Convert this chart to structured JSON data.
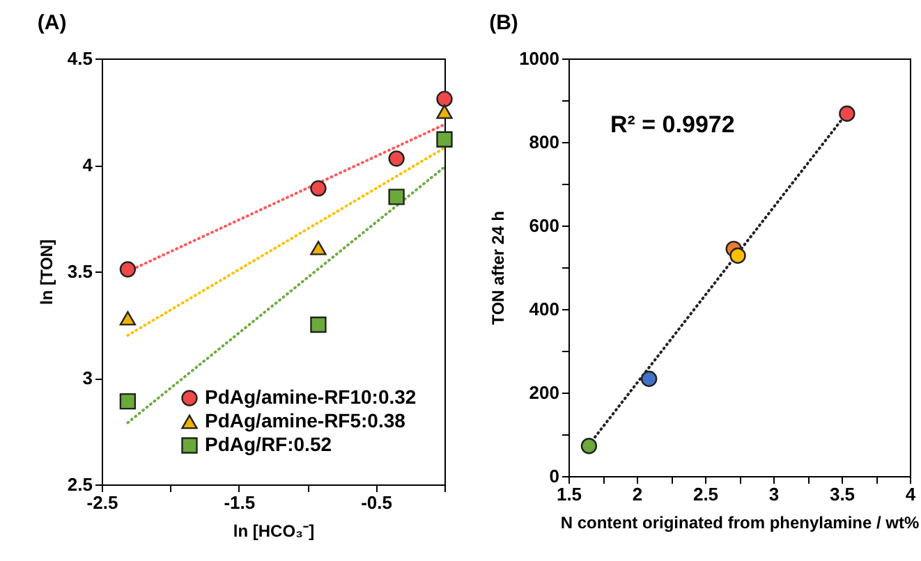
{
  "chart_data": [
    {
      "type": "scatter",
      "title": "(A)",
      "xlabel": "ln [HCO₃⁻]",
      "ylabel": "ln [TON]",
      "xlim": [
        -2.5,
        0
      ],
      "ylim": [
        2.5,
        4.5
      ],
      "xticks": [
        -2.5,
        {
          "value": -2,
          "label": null
        },
        -1.5,
        {
          "value": -1,
          "label": null
        },
        -0.5,
        {
          "value": 0,
          "label": null
        }
      ],
      "yticks": [
        2.5,
        3,
        3.5,
        4,
        4.5
      ],
      "grid": false,
      "legend": "bottom right",
      "series": [
        {
          "name": "PdAg/amine-RF10:0.32",
          "color": "#f04848",
          "marker": "circle",
          "x": [
            -2.31,
            -0.92,
            -0.35,
            0
          ],
          "values": [
            3.51,
            3.89,
            4.03,
            4.31
          ]
        },
        {
          "name": "PdAg/amine-RF5:0.38",
          "color": "#f0b000",
          "marker": "triangle",
          "x": [
            -2.31,
            -0.92,
            -0.35,
            0
          ],
          "values": [
            3.28,
            3.61,
            null,
            4.25
          ]
        },
        {
          "name": "PdAg/RF:0.52",
          "color": "#6aaa3a",
          "marker": "square",
          "x": [
            -2.31,
            -0.92,
            -0.35,
            0
          ],
          "values": [
            2.89,
            3.25,
            3.85,
            4.12
          ]
        },
        {
          "type": "line",
          "color": "#ff5a5a",
          "line_style": "dotted",
          "x": [
            -2.31,
            0
          ],
          "values": [
            3.5,
            4.19
          ]
        },
        {
          "type": "line",
          "color": "#ffc000",
          "line_style": "dotted",
          "x": [
            -2.31,
            0
          ],
          "values": [
            3.2,
            4.08
          ]
        },
        {
          "type": "line",
          "color": "#70ad47",
          "line_style": "dotted",
          "x": [
            -2.31,
            0
          ],
          "values": [
            2.79,
            3.99
          ]
        }
      ]
    },
    {
      "type": "scatter",
      "title": "(B)",
      "xlabel": "N content originated from phenylamine / wt%",
      "ylabel": "TON after 24 h",
      "xlim": [
        1.5,
        4
      ],
      "ylim": [
        0,
        1000
      ],
      "xticks": [
        1.5,
        {
          "value": 1.75,
          "label": null
        },
        2,
        {
          "value": 2.25,
          "label": null
        },
        2.5,
        {
          "value": 2.75,
          "label": null
        },
        3,
        {
          "value": 3.25,
          "label": null
        },
        3.5,
        {
          "value": 3.75,
          "label": null
        },
        4
      ],
      "yticks": [
        0,
        {
          "value": 100,
          "label": null
        },
        200,
        {
          "value": 300,
          "label": null
        },
        400,
        {
          "value": 500,
          "label": null
        },
        600,
        {
          "value": 700,
          "label": null
        },
        800,
        {
          "value": 900,
          "label": null
        },
        1000
      ],
      "grid": false,
      "annotations": [
        "R² = 0.9972"
      ],
      "series": [
        {
          "type": "line",
          "color": "#222222",
          "line_style": "dotted",
          "x": [
            1.65,
            3.54
          ],
          "values": [
            75,
            870
          ]
        },
        {
          "marker": "circle",
          "x": [
            1.65,
            2.09,
            2.71,
            2.74,
            3.54
          ],
          "values": [
            72,
            233,
            544,
            528,
            868
          ],
          "colors": [
            "#6aaa3a",
            "#4472c4",
            "#ed7d31",
            "#ffc000",
            "#f04848"
          ]
        }
      ]
    }
  ]
}
